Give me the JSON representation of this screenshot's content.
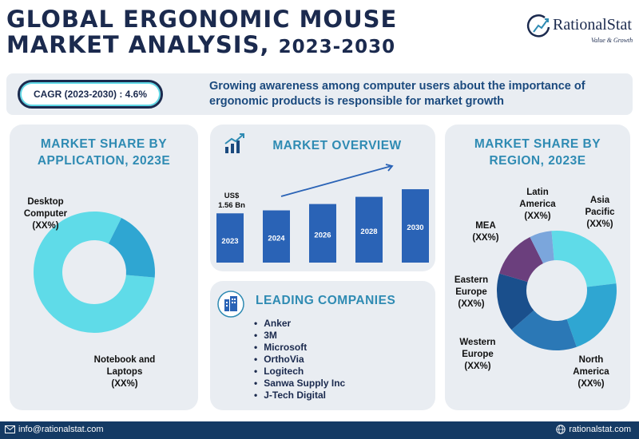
{
  "header": {
    "title_line1": "GLOBAL ERGONOMIC MOUSE",
    "title_line2_main": "MARKET ANALYSIS,",
    "title_line2_years": "2023-2030"
  },
  "logo": {
    "name": "RationalStat",
    "tagline": "Value & Growth"
  },
  "banner": {
    "cagr": "CAGR (2023-2030) : 4.6%",
    "text": "Growing awareness among computer users about the importance of ergonomic products is responsible for market growth"
  },
  "chart_data": [
    {
      "type": "pie",
      "title": "MARKET SHARE BY APPLICATION, 2023E",
      "slices": [
        {
          "label": "Desktop Computer",
          "value_label": "(XX%)",
          "share": 0.81,
          "color": "#5fdbe8"
        },
        {
          "label": "Notebook and Laptops",
          "value_label": "(XX%)",
          "share": 0.19,
          "color": "#2fa6d2"
        }
      ]
    },
    {
      "type": "bar",
      "title": "MARKET OVERVIEW",
      "categories": [
        "2023",
        "2024",
        "2026",
        "2028",
        "2030"
      ],
      "values": [
        1.56,
        1.63,
        1.78,
        1.95,
        2.13
      ],
      "annotation": [
        "US$",
        "1.56 Bn"
      ],
      "bar_color": "#2a63b6"
    },
    {
      "type": "pie",
      "title": "MARKET SHARE BY REGION, 2023E",
      "slices": [
        {
          "label": "Asia Pacific",
          "value_label": "(XX%)",
          "share": 0.245,
          "color": "#5fdbe8"
        },
        {
          "label": "North America",
          "value_label": "(XX%)",
          "share": 0.215,
          "color": "#2fa6d2"
        },
        {
          "label": "Western Europe",
          "value_label": "(XX%)",
          "share": 0.19,
          "color": "#2b78b6"
        },
        {
          "label": "Eastern Europe",
          "value_label": "(XX%)",
          "share": 0.16,
          "color": "#1a4f8c"
        },
        {
          "label": "MEA",
          "value_label": "(XX%)",
          "share": 0.13,
          "color": "#6b3f7d"
        },
        {
          "label": "Latin America",
          "value_label": "(XX%)",
          "share": 0.06,
          "color": "#7ba6dc"
        }
      ]
    }
  ],
  "companies": {
    "title": "LEADING COMPANIES",
    "items": [
      "Anker",
      "3M",
      "Microsoft",
      "OrthoVia",
      "Logitech",
      "Sanwa Supply Inc",
      "J-Tech Digital"
    ]
  },
  "footer": {
    "email": "info@rationalstat.com",
    "website": "rationalstat.com"
  }
}
